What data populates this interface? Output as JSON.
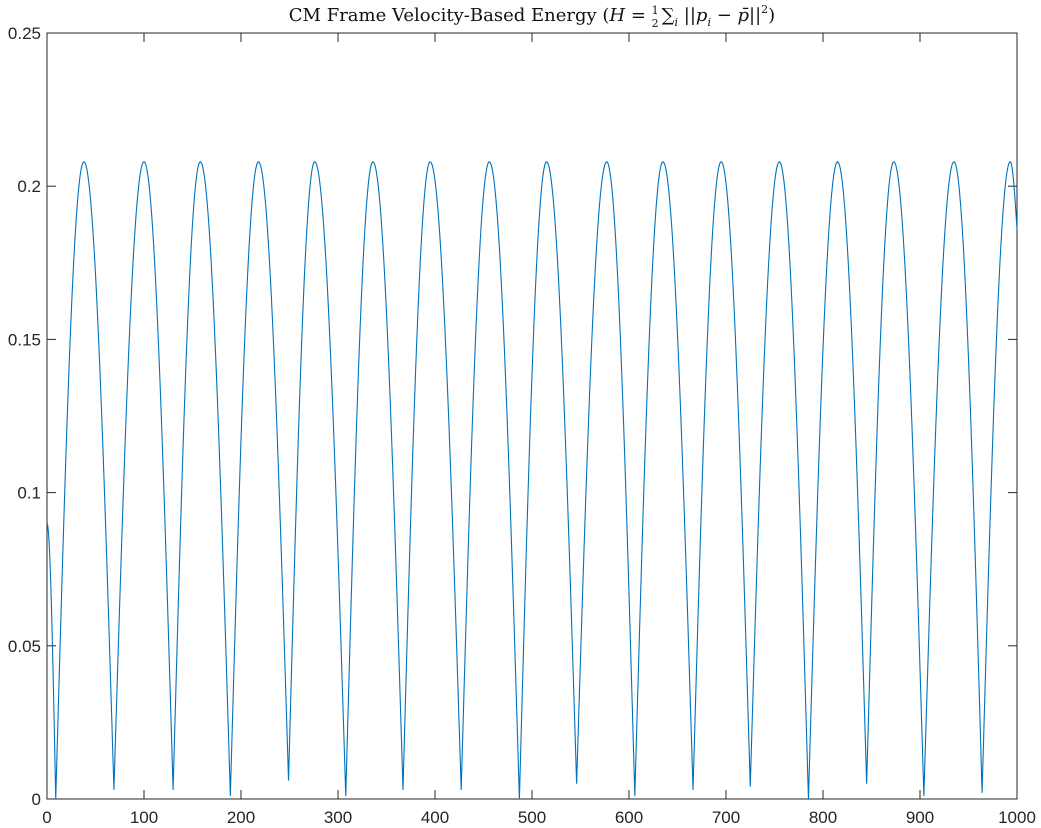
{
  "chart_data": {
    "type": "line",
    "title": "CM Frame Velocity-Based Energy (H = ½ Σᵢ ||pᵢ − p̄||²)",
    "title_parts": {
      "text": "CM Frame Velocity-Based Energy ",
      "formula_open": "(",
      "formula_H": "H",
      "formula_eq": " = ",
      "formula_half_num": "1",
      "formula_half_den": "2",
      "formula_sum": "∑",
      "formula_sub_i": "i",
      "formula_norm_open": " ||",
      "formula_p": "p",
      "formula_pi_sub": "i",
      "formula_minus": " − ",
      "formula_pbar": "p̄",
      "formula_norm_close": "||",
      "formula_sq": "2",
      "formula_close": ")"
    },
    "xlabel": "",
    "ylabel": "",
    "xlim": [
      0,
      1000
    ],
    "ylim": [
      0,
      0.25
    ],
    "x_ticks": [
      "0",
      "100",
      "200",
      "300",
      "400",
      "500",
      "600",
      "700",
      "800",
      "900",
      "1000"
    ],
    "y_ticks": [
      "0",
      "0.05",
      "0.1",
      "0.15",
      "0.2",
      "0.25"
    ],
    "grid": false,
    "box": true,
    "line_color": "#0072BD",
    "series": [
      {
        "x": [
          0,
          9,
          38,
          69,
          100,
          130,
          158,
          189,
          218,
          249,
          276,
          308,
          336,
          367,
          395,
          427,
          456,
          487,
          515,
          546,
          577,
          606,
          635,
          666,
          695,
          725,
          755,
          785,
          815,
          845,
          873,
          904,
          935,
          964,
          993,
          1000
        ],
        "y": [
          0.09,
          0.0,
          0.208,
          0.003,
          0.208,
          0.003,
          0.208,
          0.001,
          0.208,
          0.006,
          0.208,
          0.001,
          0.208,
          0.003,
          0.208,
          0.003,
          0.208,
          0.0,
          0.208,
          0.005,
          0.208,
          0.001,
          0.208,
          0.003,
          0.208,
          0.004,
          0.208,
          0.0,
          0.208,
          0.005,
          0.208,
          0.001,
          0.208,
          0.002,
          0.208,
          0.186
        ]
      }
    ]
  }
}
